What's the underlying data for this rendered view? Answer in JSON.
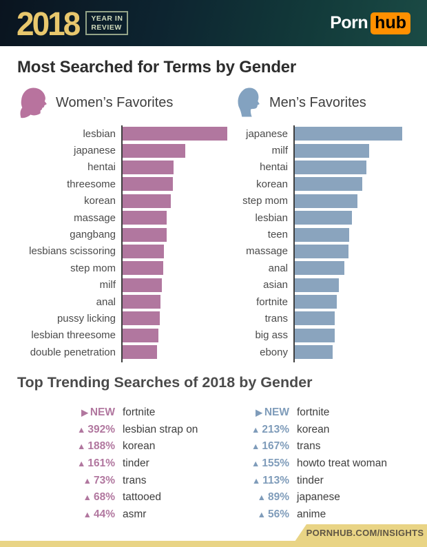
{
  "header": {
    "year": "2018",
    "year_label_line1": "YEAR IN",
    "year_label_line2": "REVIEW",
    "logo_porn": "Porn",
    "logo_hub": "hub"
  },
  "title": "Most Searched for Terms by Gender",
  "charts_section": {
    "women_header": "Women’s Favorites",
    "men_header": "Men’s Favorites"
  },
  "chart_data": [
    {
      "type": "bar",
      "title": "Women’s Favorites",
      "orientation": "horizontal",
      "color": "#b1779f",
      "unit": "relative search volume (no numeric axis shown)",
      "value_scale": "bar length in screenshot pixels, longest bar = 152",
      "categories": [
        "lesbian",
        "japanese",
        "hentai",
        "threesome",
        "korean",
        "massage",
        "gangbang",
        "lesbians scissoring",
        "step mom",
        "milf",
        "anal",
        "pussy licking",
        "lesbian threesome",
        "double penetration"
      ],
      "values": [
        152,
        91,
        74,
        73,
        70,
        64,
        64,
        60,
        59,
        57,
        55,
        54,
        52,
        50
      ]
    },
    {
      "type": "bar",
      "title": "Men’s Favorites",
      "orientation": "horizontal",
      "color": "#8aa4be",
      "unit": "relative search volume (no numeric axis shown)",
      "value_scale": "bar length in screenshot pixels, longest bar = 156",
      "categories": [
        "japanese",
        "milf",
        "hentai",
        "korean",
        "step mom",
        "lesbian",
        "teen",
        "massage",
        "anal",
        "asian",
        "fortnite",
        "trans",
        "big ass",
        "ebony"
      ],
      "values": [
        156,
        108,
        104,
        98,
        91,
        83,
        79,
        78,
        72,
        64,
        61,
        58,
        58,
        55
      ]
    }
  ],
  "trending": {
    "title": "Top Trending Searches of 2018 by Gender",
    "women": [
      {
        "change": "NEW",
        "is_new": true,
        "term": "fortnite"
      },
      {
        "change": "392%",
        "is_new": false,
        "term": "lesbian strap on"
      },
      {
        "change": "188%",
        "is_new": false,
        "term": "korean"
      },
      {
        "change": "161%",
        "is_new": false,
        "term": "tinder"
      },
      {
        "change": "73%",
        "is_new": false,
        "term": "trans"
      },
      {
        "change": "68%",
        "is_new": false,
        "term": "tattooed"
      },
      {
        "change": "44%",
        "is_new": false,
        "term": "asmr"
      }
    ],
    "men": [
      {
        "change": "NEW",
        "is_new": true,
        "term": "fortnite"
      },
      {
        "change": "213%",
        "is_new": false,
        "term": "korean"
      },
      {
        "change": "167%",
        "is_new": false,
        "term": "trans"
      },
      {
        "change": "155%",
        "is_new": false,
        "term": "howto treat woman"
      },
      {
        "change": "113%",
        "is_new": false,
        "term": "tinder"
      },
      {
        "change": "89%",
        "is_new": false,
        "term": "japanese"
      },
      {
        "change": "56%",
        "is_new": false,
        "term": "anime"
      }
    ]
  },
  "footer": {
    "url_label": "PORNHUB.COM/INSIGHTS"
  },
  "colors": {
    "women_accent": "#b1779f",
    "men_accent": "#7f9cba",
    "women_icon": "#b8739e",
    "men_icon": "#83a2c0",
    "gold_year": "#e8c76d",
    "gold_footer": "#e9d485",
    "logo_orange": "#ff9000",
    "bar_label": "#4a4a4a",
    "axis": "#3f3f3f"
  },
  "glyphs": {
    "new_arrow": "▶",
    "up_arrow": "▲"
  }
}
